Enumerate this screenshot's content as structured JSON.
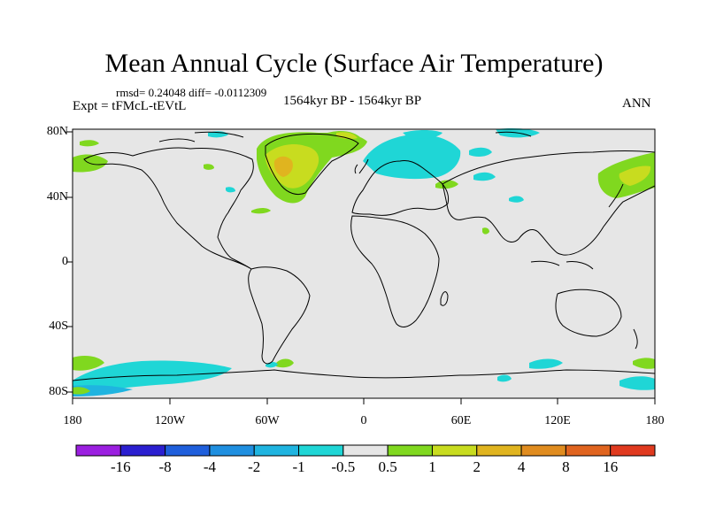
{
  "title": "Mean Annual Cycle (Surface Air Temperature)",
  "stats": "rmsd= 0.24048 diff= -0.0112309",
  "experiment": "Expt = tFMcL-tEVtL",
  "period": "1564kyr BP - 1564kyr BP",
  "season": "ANN",
  "lat_labels": [
    "80N",
    "40N",
    "0",
    "40S",
    "80S"
  ],
  "lon_labels": [
    "180",
    "120W",
    "60W",
    "0",
    "60E",
    "120E",
    "180"
  ],
  "colorbar": {
    "labels": [
      "-16",
      "-8",
      "-4",
      "-2",
      "-1",
      "-0.5",
      "0.5",
      "1",
      "2",
      "4",
      "8",
      "16"
    ],
    "colors": [
      "#9b1fe0",
      "#2b1fd0",
      "#1f5fdc",
      "#1f8fe0",
      "#1fb4e0",
      "#1fd6d6",
      "#e6e6e6",
      "#80d81f",
      "#c8dc1f",
      "#e0b41f",
      "#e08c1f",
      "#e0641f",
      "#e03a1f"
    ]
  },
  "map_colors": {
    "background": "#e6e6e6",
    "cyan": "#1fd6d6",
    "lightblue": "#1fb4e0",
    "green": "#80d81f",
    "yellowgreen": "#c8dc1f",
    "orange": "#e0b41f"
  }
}
